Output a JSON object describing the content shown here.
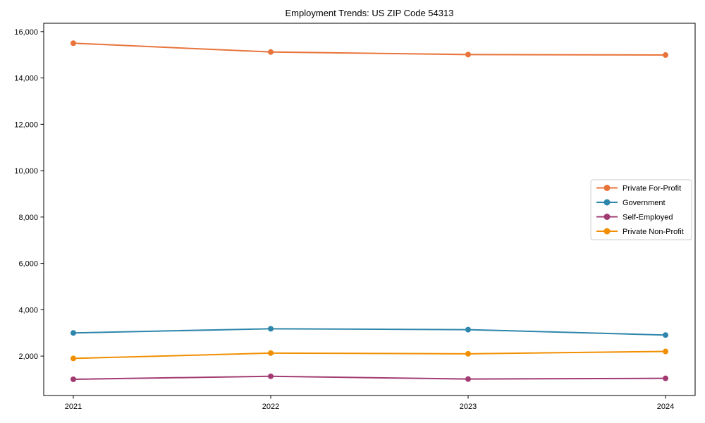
{
  "chart_data": {
    "type": "line",
    "title": "Employment Trends: US ZIP Code 54313",
    "x": [
      2021,
      2022,
      2023,
      2024
    ],
    "xtick_labels": [
      "2021",
      "2022",
      "2023",
      "2024"
    ],
    "series": [
      {
        "name": "Private For-Profit",
        "color": "#E8743B",
        "values": [
          15500,
          15120,
          15010,
          14990
        ]
      },
      {
        "name": "Government",
        "color": "#2E86AB",
        "values": [
          3000,
          3180,
          3140,
          2910
        ]
      },
      {
        "name": "Self-Employed",
        "color": "#A23B72",
        "values": [
          1000,
          1130,
          1010,
          1040
        ]
      },
      {
        "name": "Private Non-Profit",
        "color": "#F18F01",
        "values": [
          1900,
          2130,
          2100,
          2200
        ]
      }
    ],
    "yticks": [
      2000,
      4000,
      6000,
      8000,
      10000,
      12000,
      14000,
      16000
    ],
    "ytick_labels": [
      "2,000",
      "4,000",
      "6,000",
      "8,000",
      "10,000",
      "12,000",
      "14,000",
      "16,000"
    ],
    "xlim": [
      2020.85,
      2024.15
    ],
    "ylim": [
      300,
      16360
    ],
    "xlabel": "",
    "ylabel": "",
    "grid": false,
    "legend_position": "center right",
    "legend_border_color": "#cccccc",
    "marker": "circle",
    "axis_color": "#000000",
    "background": "#ffffff"
  }
}
